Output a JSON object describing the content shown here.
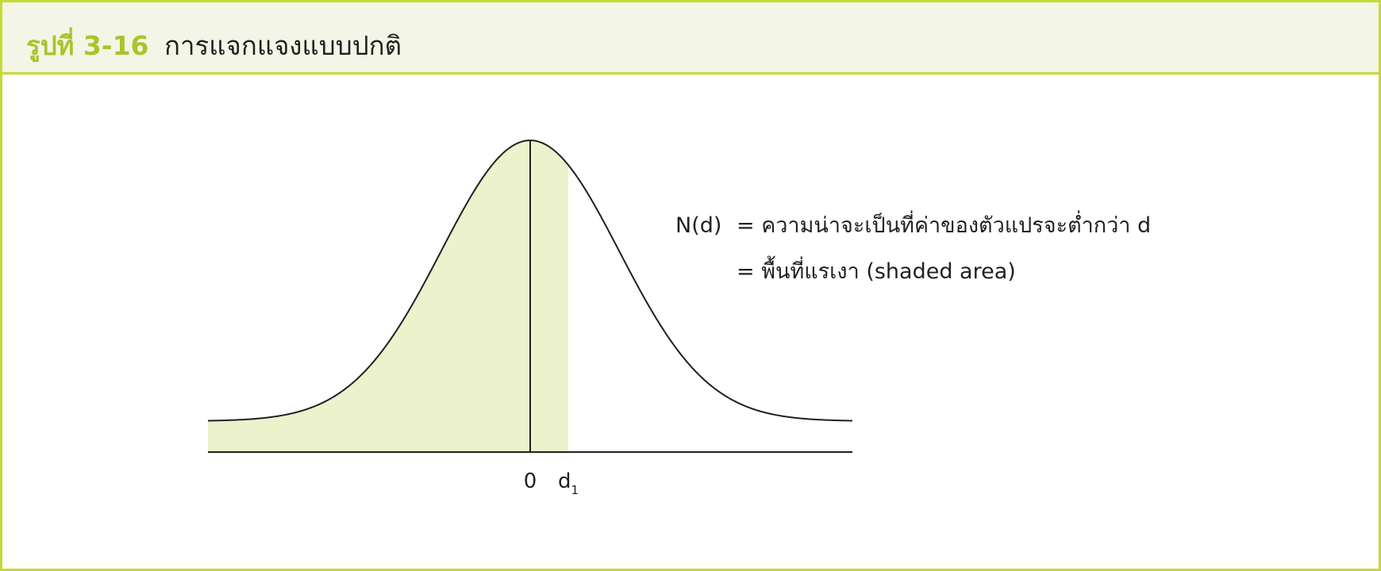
{
  "figure": {
    "label": "รูปที่ 3-16",
    "title": "การแจกแจงแบบปกติ"
  },
  "diagram": {
    "axis_labels": {
      "zero": "0",
      "d_base": "d",
      "d_subscript": "1"
    },
    "annotation": {
      "line1_lhs": "N(d)",
      "line1_rhs": "= ความน่าจะเป็นที่ค่าของตัวแปรจะต่ำกว่า d",
      "line2_rhs": "= พื้นที่แรเงา (shaded area)"
    },
    "colors": {
      "border": "#c5d936",
      "header_bg": "#f3f6e6",
      "shade": "#ebf2cc",
      "label_accent": "#a9c42b",
      "line": "#231f20"
    }
  }
}
